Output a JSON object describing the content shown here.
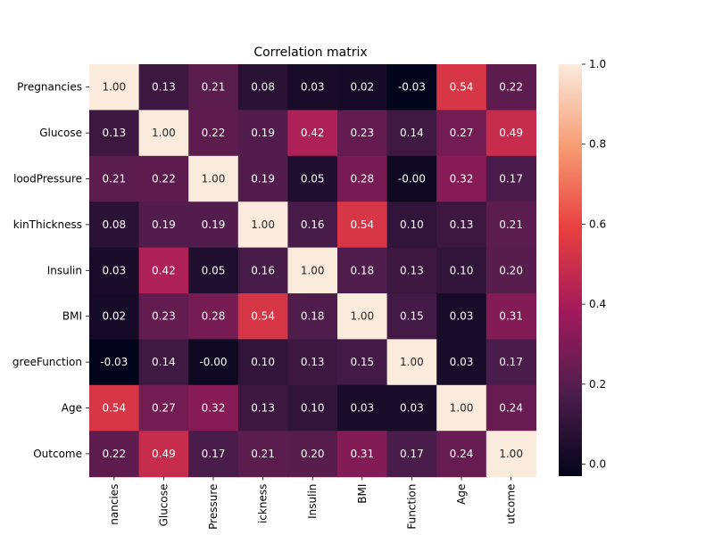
{
  "chart_data": {
    "type": "heatmap",
    "title": "Correlation matrix",
    "row_labels": [
      "Pregnancies",
      "Glucose",
      "loodPressure",
      "kinThickness",
      "Insulin",
      "BMI",
      "greeFunction",
      "Age",
      "Outcome"
    ],
    "col_labels": [
      "nancies",
      "Glucose",
      "Pressure",
      "ickness",
      "Insulin",
      "BMI",
      "Function",
      "Age",
      "utcome"
    ],
    "values": [
      [
        1.0,
        0.13,
        0.21,
        0.08,
        0.03,
        0.02,
        -0.03,
        0.54,
        0.22
      ],
      [
        0.13,
        1.0,
        0.22,
        0.19,
        0.42,
        0.23,
        0.14,
        0.27,
        0.49
      ],
      [
        0.21,
        0.22,
        1.0,
        0.19,
        0.05,
        0.28,
        -0.0,
        0.32,
        0.17
      ],
      [
        0.08,
        0.19,
        0.19,
        1.0,
        0.16,
        0.54,
        0.1,
        0.13,
        0.21
      ],
      [
        0.03,
        0.42,
        0.05,
        0.16,
        1.0,
        0.18,
        0.13,
        0.1,
        0.2
      ],
      [
        0.02,
        0.23,
        0.28,
        0.54,
        0.18,
        1.0,
        0.15,
        0.03,
        0.31
      ],
      [
        -0.03,
        0.14,
        -0.0,
        0.1,
        0.13,
        0.15,
        1.0,
        0.03,
        0.17
      ],
      [
        0.54,
        0.27,
        0.32,
        0.13,
        0.1,
        0.03,
        0.03,
        1.0,
        0.24
      ],
      [
        0.22,
        0.49,
        0.17,
        0.21,
        0.2,
        0.31,
        0.17,
        0.24,
        1.0
      ]
    ],
    "value_labels": [
      [
        "1.00",
        "0.13",
        "0.21",
        "0.08",
        "0.03",
        "0.02",
        "-0.03",
        "0.54",
        "0.22"
      ],
      [
        "0.13",
        "1.00",
        "0.22",
        "0.19",
        "0.42",
        "0.23",
        "0.14",
        "0.27",
        "0.49"
      ],
      [
        "0.21",
        "0.22",
        "1.00",
        "0.19",
        "0.05",
        "0.28",
        "-0.00",
        "0.32",
        "0.17"
      ],
      [
        "0.08",
        "0.19",
        "0.19",
        "1.00",
        "0.16",
        "0.54",
        "0.10",
        "0.13",
        "0.21"
      ],
      [
        "0.03",
        "0.42",
        "0.05",
        "0.16",
        "1.00",
        "0.18",
        "0.13",
        "0.10",
        "0.20"
      ],
      [
        "0.02",
        "0.23",
        "0.28",
        "0.54",
        "0.18",
        "1.00",
        "0.15",
        "0.03",
        "0.31"
      ],
      [
        "-0.03",
        "0.14",
        "-0.00",
        "0.10",
        "0.13",
        "0.15",
        "1.00",
        "0.03",
        "0.17"
      ],
      [
        "0.54",
        "0.27",
        "0.32",
        "0.13",
        "0.10",
        "0.03",
        "0.03",
        "1.00",
        "0.24"
      ],
      [
        "0.22",
        "0.49",
        "0.17",
        "0.21",
        "0.20",
        "0.31",
        "0.17",
        "0.24",
        "1.00"
      ]
    ],
    "colorbar": {
      "min": -0.03,
      "max": 1.0,
      "ticks": [
        0.0,
        0.2,
        0.4,
        0.6,
        0.8,
        1.0
      ],
      "tick_labels": [
        "0.0",
        "0.2",
        "0.4",
        "0.6",
        "0.8",
        "1.0"
      ],
      "colormap": "rocket",
      "colors": [
        "#03051a",
        "#4c1d4b",
        "#a11a5b",
        "#e83f3f",
        "#f69c73",
        "#faebdd"
      ]
    },
    "grid": false
  }
}
